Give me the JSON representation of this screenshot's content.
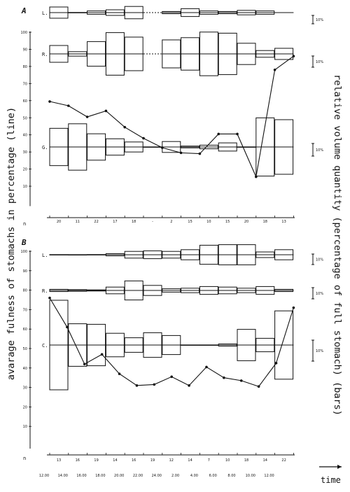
{
  "chart_data": {
    "type": "bar",
    "y_axis_title": "avarage fulness of stomachs in percentage (line)",
    "right_axis_title": "relative volume quantity (percentage of full stomach) (bars)",
    "time_label": "time",
    "scale_bar_label": "10%",
    "y_ticks": [
      100,
      90,
      80,
      70,
      60,
      50,
      40,
      30,
      20,
      10
    ],
    "ylim": [
      0,
      100
    ],
    "panels": [
      {
        "letter": "A",
        "n_label": "n",
        "n_values": [
          "20",
          "11",
          "22",
          "17",
          "18",
          "-",
          "2",
          "15",
          "10",
          "15",
          "20",
          "18",
          "13"
        ],
        "series": [
          {
            "name": "L.",
            "bar_widths": [
              10,
              0.3,
              3,
              5,
              11,
              null,
              2,
              7,
              3,
              2,
              4,
              3,
              null
            ],
            "connector_gap": [
              5,
              6
            ]
          },
          {
            "name": "R.",
            "bar_widths": [
              15,
              4,
              22,
              38,
              30,
              null,
              25,
              29,
              39,
              37,
              19,
              6,
              10
            ],
            "connector_gap": [
              5,
              6
            ]
          },
          {
            "name": "G.",
            "bar_widths": [
              41,
              51,
              29,
              18,
              11,
              0.2,
              12,
              2,
              4,
              9,
              0.2,
              64,
              60
            ],
            "connector_gap": [
              5,
              6
            ]
          }
        ],
        "line_values": [
          59.5,
          57,
          50.5,
          54,
          44.5,
          38,
          32.5,
          29.5,
          29,
          40.5,
          40.5,
          15.5,
          78,
          86
        ]
      },
      {
        "letter": "B",
        "n_label": "n",
        "n_values": [
          "13",
          "16",
          "19",
          "14",
          "16",
          "19",
          "12",
          "14",
          "7",
          "10",
          "18",
          "14",
          "22"
        ],
        "x_ticks": [
          "12.00",
          "14.00",
          "16.00",
          "18.00",
          "20.00",
          "22.00",
          "24.00",
          "2.00",
          "4.00",
          "6.00",
          "8.00",
          "10.00",
          "12.00"
        ],
        "series": [
          {
            "name": "L.",
            "bar_widths": [
              0.3,
              0.2,
              0.4,
              2,
              6,
              7,
              6,
              9,
              17,
              18,
              18,
              5,
              9
            ]
          },
          {
            "name": "R.",
            "bar_widths": [
              2,
              1.5,
              1,
              6,
              17,
              9,
              3,
              4,
              7,
              6,
              4,
              7,
              2
            ]
          },
          {
            "name": "C.",
            "bar_widths": [
              80,
              38,
              37,
              21,
              13,
              22,
              17,
              0.2,
              0.2,
              2,
              28,
              12,
              61
            ]
          }
        ],
        "line_values": [
          76,
          61,
          42,
          47,
          37,
          31,
          31.5,
          35.5,
          31,
          40.5,
          35,
          33.5,
          30.5,
          42.5,
          71
        ]
      }
    ]
  }
}
